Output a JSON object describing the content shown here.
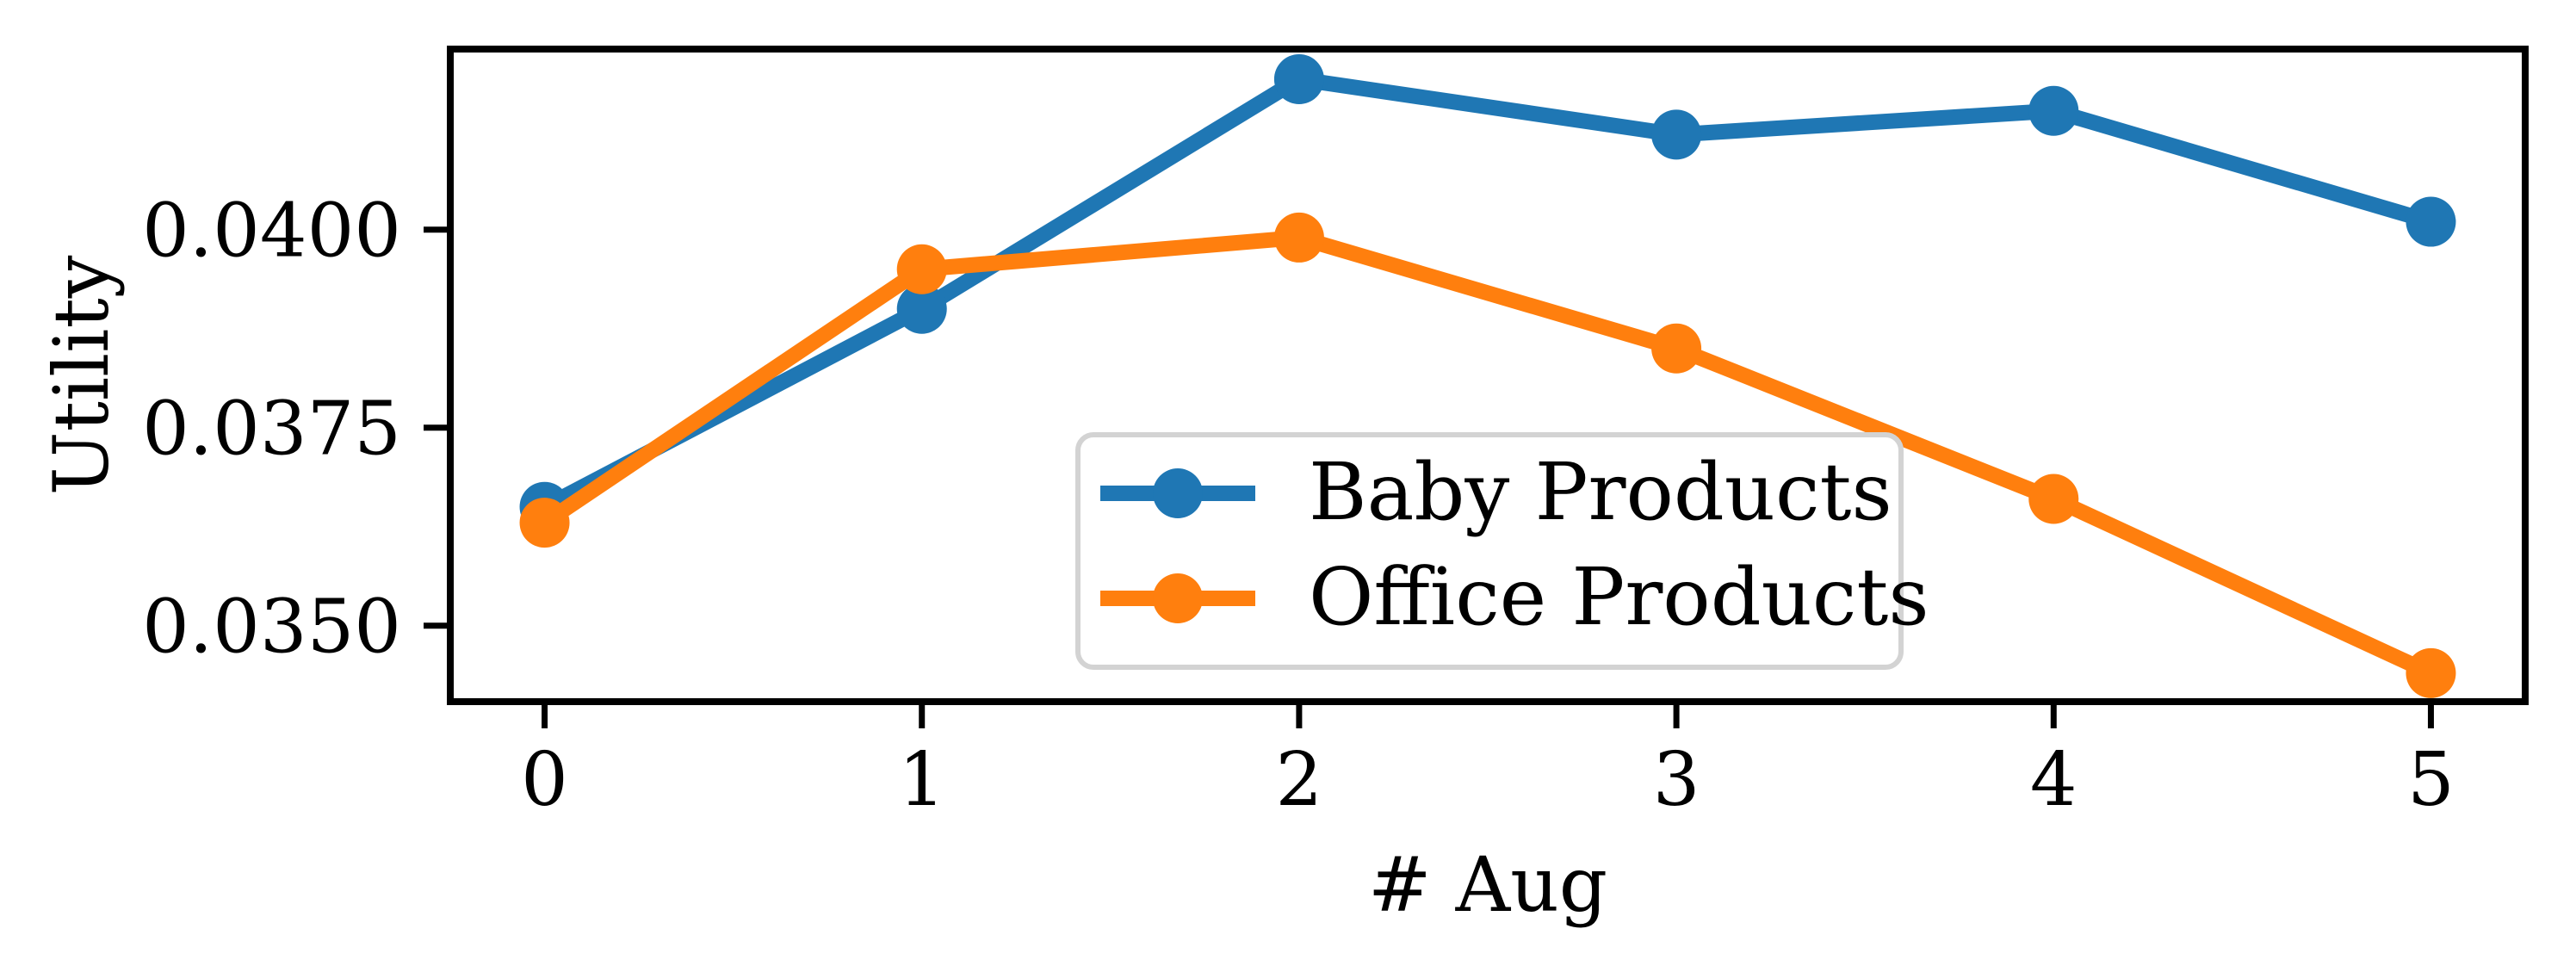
{
  "chart_data": {
    "type": "line",
    "title": "",
    "xlabel": "# Aug",
    "ylabel": "Utility",
    "x": [
      0,
      1,
      2,
      3,
      4,
      5
    ],
    "series": [
      {
        "name": "Baby Products",
        "color": "#1f77b4",
        "marker": "circle",
        "values": [
          0.0365,
          0.039,
          0.0419,
          0.0412,
          0.0415,
          0.0401
        ]
      },
      {
        "name": "Office Products",
        "color": "#ff7f0e",
        "marker": "circle",
        "values": [
          0.0363,
          0.0395,
          0.0399,
          0.0385,
          0.0366,
          0.0344
        ]
      }
    ],
    "xticks": {
      "values": [
        0,
        1,
        2,
        3,
        4,
        5
      ],
      "labels": [
        "0",
        "1",
        "2",
        "3",
        "4",
        "5"
      ]
    },
    "yticks": {
      "values": [
        0.035,
        0.0375,
        0.04
      ],
      "labels": [
        "0.0350",
        "0.0375",
        "0.0400"
      ]
    },
    "xlim": [
      -0.25,
      5.25
    ],
    "ylim": [
      0.03404,
      0.04228
    ],
    "grid": false,
    "legend": {
      "position": "inside lower center",
      "entries": [
        "Baby Products",
        "Office Products"
      ]
    }
  },
  "colors": {
    "axis": "#000000",
    "background": "#ffffff",
    "legend_border": "#d3d3d3",
    "legend_fill": "#ffffff",
    "series_blue": "#1f77b4",
    "series_orange": "#ff7f0e"
  }
}
